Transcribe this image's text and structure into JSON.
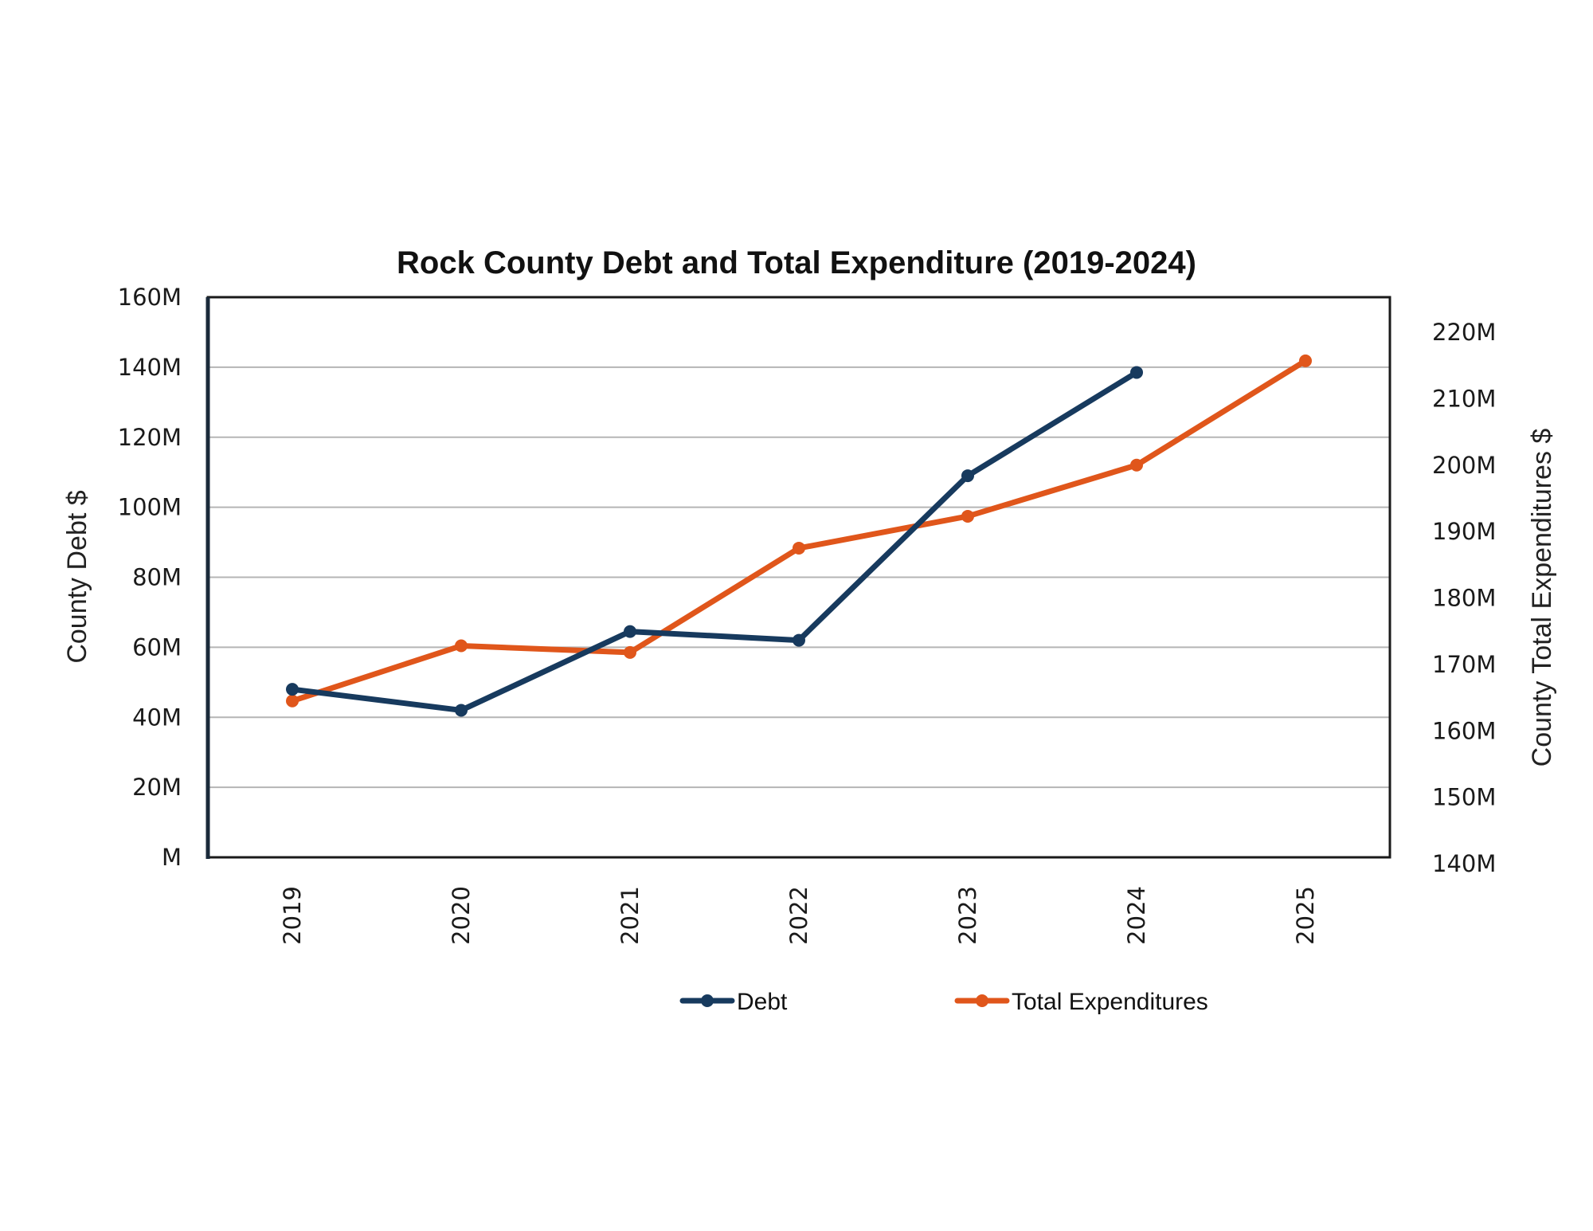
{
  "chart_data": {
    "type": "line",
    "title": "Rock County Debt and Total Expenditure (2019-2024)",
    "xlabel": "",
    "ylabel": "County Debt $",
    "y2label": "County Total Expenditures $",
    "categories": [
      "2019",
      "2020",
      "2021",
      "2022",
      "2023",
      "2024",
      "2025"
    ],
    "ylim": [
      0,
      160
    ],
    "y2lim": [
      140,
      220
    ],
    "y_ticks": [
      0,
      20,
      40,
      60,
      80,
      100,
      120,
      140,
      160
    ],
    "y_tick_labels": [
      "M",
      "20M",
      "40M",
      "60M",
      "80M",
      "100M",
      "120M",
      "140M",
      "160M"
    ],
    "y2_ticks": [
      140,
      150,
      160,
      170,
      180,
      190,
      200,
      210,
      220
    ],
    "y2_tick_labels": [
      "140M",
      "150M",
      "160M",
      "170M",
      "180M",
      "190M",
      "200M",
      "210M",
      "220M"
    ],
    "grid": true,
    "legend_position": "bottom",
    "series": [
      {
        "name": "Debt",
        "axis": "left",
        "color": "#173a5e",
        "values": [
          48,
          42,
          64.5,
          62,
          109,
          138.5,
          null
        ]
      },
      {
        "name": "Total Expenditures",
        "axis": "right",
        "color": "#e0561b",
        "values": [
          164.5,
          172.8,
          171.8,
          187.5,
          192.3,
          200,
          215.7
        ]
      }
    ]
  }
}
